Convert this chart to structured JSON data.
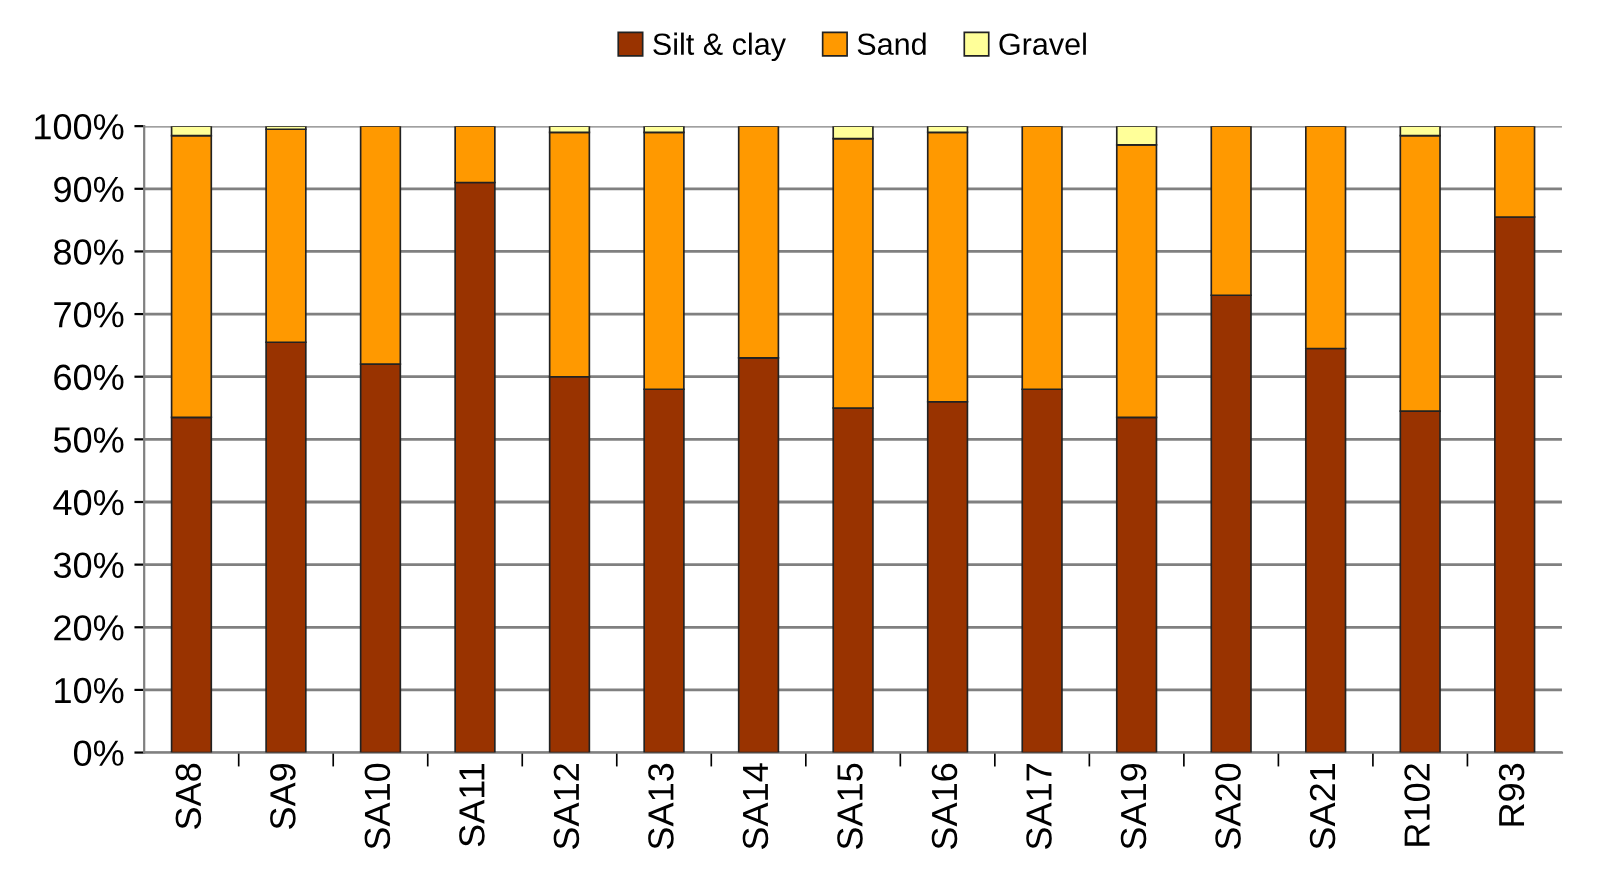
{
  "chart_data": {
    "type": "bar",
    "stacked": true,
    "categories": [
      "SA8",
      "SA9",
      "SA10",
      "SA11",
      "SA12",
      "SA13",
      "SA14",
      "SA15",
      "SA16",
      "SA17",
      "SA19",
      "SA20",
      "SA21",
      "R102",
      "R93"
    ],
    "series": [
      {
        "name": "Silt & clay",
        "color": "#993300",
        "values": [
          53.5,
          65.5,
          62,
          91,
          60,
          58,
          63,
          55,
          56,
          58,
          53.5,
          73,
          64.5,
          54.5,
          85.5
        ]
      },
      {
        "name": "Sand",
        "color": "#ff9900",
        "values": [
          45,
          34,
          38,
          9,
          39,
          41,
          37,
          43,
          43,
          42,
          43.5,
          27,
          35.5,
          44,
          14.5
        ]
      },
      {
        "name": "Gravel",
        "color": "#ffff99",
        "values": [
          1.5,
          0.5,
          0,
          0,
          1,
          1,
          0,
          2,
          1,
          0,
          3,
          0,
          0,
          1.5,
          0
        ]
      }
    ],
    "ylim": [
      0,
      100
    ],
    "yticks": [
      {
        "value": 0,
        "label": "0%"
      },
      {
        "value": 10,
        "label": "10%"
      },
      {
        "value": 20,
        "label": "20%"
      },
      {
        "value": 30,
        "label": "30%"
      },
      {
        "value": 40,
        "label": "40%"
      },
      {
        "value": 50,
        "label": "50%"
      },
      {
        "value": 60,
        "label": "60%"
      },
      {
        "value": 70,
        "label": "70%"
      },
      {
        "value": 80,
        "label": "80%"
      },
      {
        "value": 90,
        "label": "90%"
      },
      {
        "value": 100,
        "label": "100%"
      }
    ],
    "grid": "y",
    "legend": "top"
  }
}
